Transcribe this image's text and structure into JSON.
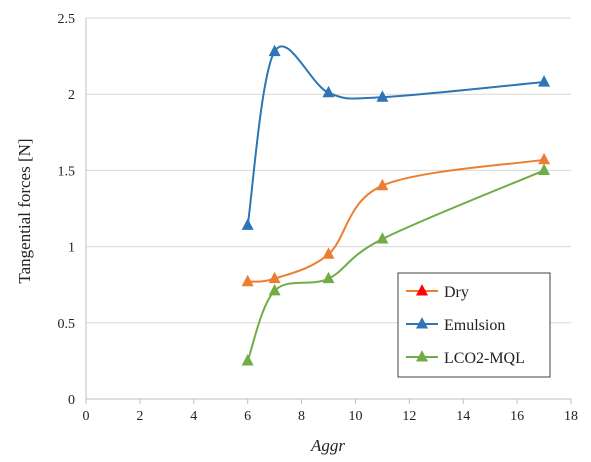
{
  "chart_data": {
    "type": "line",
    "title": "",
    "xlabel": "Aggr",
    "ylabel": "Tangential forces [N]",
    "xlim": [
      0,
      18
    ],
    "ylim": [
      0,
      2.5
    ],
    "xticks": [
      0,
      2,
      4,
      6,
      8,
      10,
      12,
      14,
      16,
      18
    ],
    "yticks": [
      0,
      0.5,
      1,
      1.5,
      2,
      2.5
    ],
    "xtick_labels": [
      "0",
      "2",
      "4",
      "6",
      "8",
      "10",
      "12",
      "14",
      "16",
      "18"
    ],
    "ytick_labels": [
      "0",
      "0.5",
      "1",
      "1.5",
      "2",
      "2.5"
    ],
    "grid": "horizontal",
    "legend_position": "bottom-right",
    "smooth": true,
    "marker": "triangle",
    "series": [
      {
        "name": "Dry",
        "color": "#ED7D31",
        "x": [
          6,
          7,
          9,
          11,
          17
        ],
        "y": [
          0.77,
          0.79,
          0.95,
          1.4,
          1.57
        ]
      },
      {
        "name": "Emulsion",
        "color": "#2E75B6",
        "x": [
          6,
          7,
          9,
          11,
          17
        ],
        "y": [
          1.14,
          2.28,
          2.01,
          1.98,
          2.08
        ]
      },
      {
        "name": "LCO2-MQL",
        "color": "#70AD47",
        "x": [
          6,
          7,
          9,
          11,
          17
        ],
        "y": [
          0.25,
          0.71,
          0.79,
          1.05,
          1.5
        ]
      }
    ],
    "marker_color": "#FF0000"
  }
}
